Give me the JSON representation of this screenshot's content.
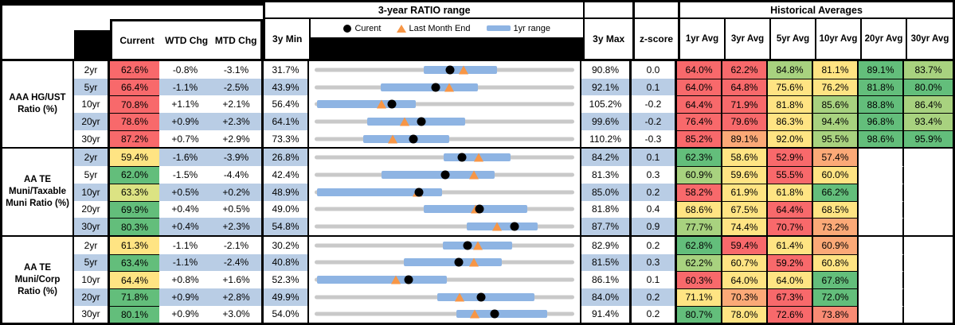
{
  "palette": {
    "band_blue": "#B9CDE5",
    "bar_blue": "#8EB4E3",
    "track_gray": "#C9C9C9",
    "marker_orange": "#F79646",
    "scale_red": "#F8696B",
    "scale_salmon": "#F98B74",
    "scale_orange": "#FBA977",
    "scale_yellow": "#FFE483",
    "scale_yellowgreen": "#DCE383",
    "scale_lightgreen": "#A8D27F",
    "scale_green": "#63BE7B"
  },
  "header": {
    "chart_title": "3-year RATIO range",
    "hist_title": "Historical Averages",
    "col_current": "Current",
    "col_wtd": "WTD Chg",
    "col_mtd": "MTD Chg",
    "col_min": "3y Min",
    "col_max": "3y Max",
    "col_z": "z-score",
    "avg_cols": [
      "1yr Avg",
      "3yr Avg",
      "5yr Avg",
      "10yr Avg",
      "20yr Avg",
      "30yr Avg"
    ],
    "legend_current": "Curent",
    "legend_last_month": "Last Month End",
    "legend_range": "1yr range"
  },
  "groups": [
    {
      "label": "AAA HG/UST Ratio (%)",
      "rows": [
        {
          "tenor": "2yr",
          "current": "62.6%",
          "ccol": "red",
          "wtd": "-0.8%",
          "mtd": "-3.1%",
          "min": "31.7%",
          "max": "90.8%",
          "z": "0.0",
          "avgs": [
            {
              "v": "64.0%",
              "c": "red"
            },
            {
              "v": "62.2%",
              "c": "red"
            },
            {
              "v": "84.8%",
              "c": "lg"
            },
            {
              "v": "81.1%",
              "c": "yellow"
            },
            {
              "v": "89.1%",
              "c": "green"
            },
            {
              "v": "83.7%",
              "c": "lg"
            }
          ],
          "chart": {
            "min": 31.7,
            "max": 90.8,
            "lo": 56.4,
            "hi": 73.4,
            "cur": 62.6,
            "lme": 65.7
          }
        },
        {
          "tenor": "5yr",
          "current": "66.4%",
          "ccol": "red",
          "wtd": "-1.1%",
          "mtd": "-2.5%",
          "min": "43.9%",
          "max": "92.1%",
          "z": "0.1",
          "avgs": [
            {
              "v": "64.0%",
              "c": "red"
            },
            {
              "v": "64.8%",
              "c": "red"
            },
            {
              "v": "75.6%",
              "c": "yellow"
            },
            {
              "v": "76.2%",
              "c": "yellow"
            },
            {
              "v": "81.8%",
              "c": "green"
            },
            {
              "v": "80.0%",
              "c": "green"
            }
          ],
          "chart": {
            "min": 43.9,
            "max": 92.1,
            "lo": 56.0,
            "hi": 74.3,
            "cur": 66.4,
            "lme": 68.9
          }
        },
        {
          "tenor": "10yr",
          "current": "70.8%",
          "ccol": "red",
          "wtd": "+1.1%",
          "mtd": "+2.1%",
          "min": "56.4%",
          "max": "105.2%",
          "z": "-0.2",
          "avgs": [
            {
              "v": "64.4%",
              "c": "red"
            },
            {
              "v": "71.9%",
              "c": "red"
            },
            {
              "v": "81.8%",
              "c": "yellow"
            },
            {
              "v": "85.6%",
              "c": "lg"
            },
            {
              "v": "88.8%",
              "c": "green"
            },
            {
              "v": "86.4%",
              "c": "lg"
            }
          ],
          "chart": {
            "min": 56.4,
            "max": 105.2,
            "lo": 56.4,
            "hi": 75.3,
            "cur": 70.8,
            "lme": 68.7
          }
        },
        {
          "tenor": "20yr",
          "current": "78.6%",
          "ccol": "red",
          "wtd": "+0.9%",
          "mtd": "+2.3%",
          "min": "64.1%",
          "max": "99.6%",
          "z": "-0.2",
          "avgs": [
            {
              "v": "76.4%",
              "c": "red"
            },
            {
              "v": "79.6%",
              "c": "red"
            },
            {
              "v": "86.3%",
              "c": "yellow"
            },
            {
              "v": "94.4%",
              "c": "lg"
            },
            {
              "v": "96.8%",
              "c": "green"
            },
            {
              "v": "93.4%",
              "c": "lg"
            }
          ],
          "chart": {
            "min": 64.1,
            "max": 99.6,
            "lo": 71.1,
            "hi": 84.7,
            "cur": 78.6,
            "lme": 76.3
          }
        },
        {
          "tenor": "30yr",
          "current": "87.2%",
          "ccol": "red",
          "wtd": "+0.7%",
          "mtd": "+2.9%",
          "min": "73.3%",
          "max": "110.2%",
          "z": "-0.3",
          "avgs": [
            {
              "v": "85.2%",
              "c": "red"
            },
            {
              "v": "89.1%",
              "c": "orange"
            },
            {
              "v": "92.0%",
              "c": "yellow"
            },
            {
              "v": "95.5%",
              "c": "lg"
            },
            {
              "v": "98.6%",
              "c": "green"
            },
            {
              "v": "95.9%",
              "c": "green"
            }
          ],
          "chart": {
            "min": 73.3,
            "max": 110.2,
            "lo": 80.0,
            "hi": 92.4,
            "cur": 87.2,
            "lme": 84.3
          }
        }
      ]
    },
    {
      "label": "AA TE Muni/Taxable Muni Ratio (%)",
      "rows": [
        {
          "tenor": "2yr",
          "current": "59.4%",
          "ccol": "yellow",
          "wtd": "-1.6%",
          "mtd": "-3.9%",
          "min": "26.8%",
          "max": "84.2%",
          "z": "0.1",
          "avgs": [
            {
              "v": "62.3%",
              "c": "green"
            },
            {
              "v": "58.6%",
              "c": "yellow"
            },
            {
              "v": "52.9%",
              "c": "red"
            },
            {
              "v": "57.4%",
              "c": "orange"
            },
            null,
            null
          ],
          "chart": {
            "min": 26.8,
            "max": 84.2,
            "lo": 55.4,
            "hi": 70.4,
            "cur": 59.4,
            "lme": 63.3
          }
        },
        {
          "tenor": "5yr",
          "current": "62.0%",
          "ccol": "green",
          "wtd": "-1.5%",
          "mtd": "-4.4%",
          "min": "42.4%",
          "max": "81.3%",
          "z": "0.3",
          "avgs": [
            {
              "v": "60.9%",
              "c": "lg"
            },
            {
              "v": "59.6%",
              "c": "yellow"
            },
            {
              "v": "55.5%",
              "c": "red"
            },
            {
              "v": "60.0%",
              "c": "yellow"
            },
            null,
            null
          ],
          "chart": {
            "min": 42.4,
            "max": 81.3,
            "lo": 52.2,
            "hi": 69.5,
            "cur": 62.0,
            "lme": 66.4
          }
        },
        {
          "tenor": "10yr",
          "current": "63.3%",
          "ccol": "yg",
          "wtd": "+0.5%",
          "mtd": "+0.2%",
          "min": "48.9%",
          "max": "85.0%",
          "z": "0.2",
          "avgs": [
            {
              "v": "58.2%",
              "c": "red"
            },
            {
              "v": "61.9%",
              "c": "yellow"
            },
            {
              "v": "61.8%",
              "c": "yellow"
            },
            {
              "v": "66.2%",
              "c": "green"
            },
            null,
            null
          ],
          "chart": {
            "min": 48.9,
            "max": 85.0,
            "lo": 48.9,
            "hi": 66.6,
            "cur": 63.3,
            "lme": 63.1
          }
        },
        {
          "tenor": "20yr",
          "current": "69.9%",
          "ccol": "green",
          "wtd": "+0.4%",
          "mtd": "+0.5%",
          "min": "49.0%",
          "max": "81.8%",
          "z": "0.4",
          "avgs": [
            {
              "v": "68.6%",
              "c": "yellow"
            },
            {
              "v": "67.5%",
              "c": "yellow"
            },
            {
              "v": "64.4%",
              "c": "red"
            },
            {
              "v": "68.5%",
              "c": "yellow"
            },
            null,
            null
          ],
          "chart": {
            "min": 49.0,
            "max": 81.8,
            "lo": 62.7,
            "hi": 76.1,
            "cur": 69.9,
            "lme": 69.4
          }
        },
        {
          "tenor": "30yr",
          "current": "80.3%",
          "ccol": "green",
          "wtd": "+0.4%",
          "mtd": "+2.3%",
          "min": "54.8%",
          "max": "87.7%",
          "z": "0.9",
          "avgs": [
            {
              "v": "77.7%",
              "c": "lg"
            },
            {
              "v": "74.4%",
              "c": "yellow"
            },
            {
              "v": "70.7%",
              "c": "red"
            },
            {
              "v": "73.2%",
              "c": "orange"
            },
            null,
            null
          ],
          "chart": {
            "min": 54.8,
            "max": 87.7,
            "lo": 74.1,
            "hi": 83.3,
            "cur": 80.3,
            "lme": 78.0
          }
        }
      ]
    },
    {
      "label": "AA TE Muni/Corp Ratio (%)",
      "rows": [
        {
          "tenor": "2yr",
          "current": "61.3%",
          "ccol": "yellow",
          "wtd": "-1.1%",
          "mtd": "-2.1%",
          "min": "30.2%",
          "max": "82.9%",
          "z": "0.2",
          "avgs": [
            {
              "v": "62.8%",
              "c": "green"
            },
            {
              "v": "59.4%",
              "c": "red"
            },
            {
              "v": "61.4%",
              "c": "yellow"
            },
            {
              "v": "60.9%",
              "c": "orange"
            },
            null,
            null
          ],
          "chart": {
            "min": 30.2,
            "max": 82.9,
            "lo": 56.3,
            "hi": 70.5,
            "cur": 61.3,
            "lme": 63.4
          }
        },
        {
          "tenor": "5yr",
          "current": "63.4%",
          "ccol": "green",
          "wtd": "-1.1%",
          "mtd": "-2.4%",
          "min": "40.8%",
          "max": "81.5%",
          "z": "0.3",
          "avgs": [
            {
              "v": "62.2%",
              "c": "lg"
            },
            {
              "v": "60.7%",
              "c": "yellow"
            },
            {
              "v": "59.2%",
              "c": "red"
            },
            {
              "v": "60.8%",
              "c": "yellow"
            },
            null,
            null
          ],
          "chart": {
            "min": 40.8,
            "max": 81.5,
            "lo": 54.6,
            "hi": 70.3,
            "cur": 63.4,
            "lme": 65.8
          }
        },
        {
          "tenor": "10yr",
          "current": "64.4%",
          "ccol": "yellow",
          "wtd": "+0.8%",
          "mtd": "+1.6%",
          "min": "52.3%",
          "max": "86.1%",
          "z": "0.1",
          "avgs": [
            {
              "v": "60.3%",
              "c": "red"
            },
            {
              "v": "64.0%",
              "c": "yellow"
            },
            {
              "v": "64.0%",
              "c": "yellow"
            },
            {
              "v": "67.8%",
              "c": "green"
            },
            null,
            null
          ],
          "chart": {
            "min": 52.3,
            "max": 86.1,
            "lo": 52.3,
            "hi": 69.5,
            "cur": 64.4,
            "lme": 62.8
          }
        },
        {
          "tenor": "20yr",
          "current": "71.8%",
          "ccol": "green",
          "wtd": "+0.9%",
          "mtd": "+2.8%",
          "min": "49.9%",
          "max": "84.0%",
          "z": "0.2",
          "avgs": [
            {
              "v": "71.1%",
              "c": "yellow"
            },
            {
              "v": "70.3%",
              "c": "orange"
            },
            {
              "v": "67.3%",
              "c": "red"
            },
            {
              "v": "72.0%",
              "c": "green"
            },
            null,
            null
          ],
          "chart": {
            "min": 49.9,
            "max": 84.0,
            "lo": 66.0,
            "hi": 79.0,
            "cur": 71.8,
            "lme": 69.0
          }
        },
        {
          "tenor": "30yr",
          "current": "80.1%",
          "ccol": "green",
          "wtd": "+0.9%",
          "mtd": "+3.0%",
          "min": "54.0%",
          "max": "91.4%",
          "z": "0.2",
          "avgs": [
            {
              "v": "80.7%",
              "c": "green"
            },
            {
              "v": "78.0%",
              "c": "yellow"
            },
            {
              "v": "72.6%",
              "c": "red"
            },
            {
              "v": "73.8%",
              "c": "salmon"
            },
            null,
            null
          ],
          "chart": {
            "min": 54.0,
            "max": 91.4,
            "lo": 74.5,
            "hi": 87.8,
            "cur": 80.1,
            "lme": 77.1
          }
        }
      ]
    }
  ],
  "chart_data": {
    "type": "table",
    "title": "3-year RATIO range",
    "legend": [
      "Curent",
      "Last Month End",
      "1yr range"
    ],
    "note": "Each row plots a horizontal range from 3y Min to 3y Max (gray track), a 1yr range bar (blue), current value (black dot) and last month end (orange triangle). Values in percent.",
    "rows": [
      {
        "group": "AAA HG/UST Ratio (%)",
        "tenor": "2yr",
        "min_3y": 31.7,
        "max_3y": 90.8,
        "range_1yr": [
          56.4,
          73.4
        ],
        "current": 62.6,
        "last_month_end": 65.7
      },
      {
        "group": "AAA HG/UST Ratio (%)",
        "tenor": "5yr",
        "min_3y": 43.9,
        "max_3y": 92.1,
        "range_1yr": [
          56.0,
          74.3
        ],
        "current": 66.4,
        "last_month_end": 68.9
      },
      {
        "group": "AAA HG/UST Ratio (%)",
        "tenor": "10yr",
        "min_3y": 56.4,
        "max_3y": 105.2,
        "range_1yr": [
          56.4,
          75.3
        ],
        "current": 70.8,
        "last_month_end": 68.7
      },
      {
        "group": "AAA HG/UST Ratio (%)",
        "tenor": "20yr",
        "min_3y": 64.1,
        "max_3y": 99.6,
        "range_1yr": [
          71.1,
          84.7
        ],
        "current": 78.6,
        "last_month_end": 76.3
      },
      {
        "group": "AAA HG/UST Ratio (%)",
        "tenor": "30yr",
        "min_3y": 73.3,
        "max_3y": 110.2,
        "range_1yr": [
          80.0,
          92.4
        ],
        "current": 87.2,
        "last_month_end": 84.3
      },
      {
        "group": "AA TE Muni/Taxable Muni Ratio (%)",
        "tenor": "2yr",
        "min_3y": 26.8,
        "max_3y": 84.2,
        "range_1yr": [
          55.4,
          70.4
        ],
        "current": 59.4,
        "last_month_end": 63.3
      },
      {
        "group": "AA TE Muni/Taxable Muni Ratio (%)",
        "tenor": "5yr",
        "min_3y": 42.4,
        "max_3y": 81.3,
        "range_1yr": [
          52.2,
          69.5
        ],
        "current": 62.0,
        "last_month_end": 66.4
      },
      {
        "group": "AA TE Muni/Taxable Muni Ratio (%)",
        "tenor": "10yr",
        "min_3y": 48.9,
        "max_3y": 85.0,
        "range_1yr": [
          48.9,
          66.6
        ],
        "current": 63.3,
        "last_month_end": 63.1
      },
      {
        "group": "AA TE Muni/Taxable Muni Ratio (%)",
        "tenor": "20yr",
        "min_3y": 49.0,
        "max_3y": 81.8,
        "range_1yr": [
          62.7,
          76.1
        ],
        "current": 69.9,
        "last_month_end": 69.4
      },
      {
        "group": "AA TE Muni/Taxable Muni Ratio (%)",
        "tenor": "30yr",
        "min_3y": 54.8,
        "max_3y": 87.7,
        "range_1yr": [
          74.1,
          83.3
        ],
        "current": 80.3,
        "last_month_end": 78.0
      },
      {
        "group": "AA TE Muni/Corp Ratio (%)",
        "tenor": "2yr",
        "min_3y": 30.2,
        "max_3y": 82.9,
        "range_1yr": [
          56.3,
          70.5
        ],
        "current": 61.3,
        "last_month_end": 63.4
      },
      {
        "group": "AA TE Muni/Corp Ratio (%)",
        "tenor": "5yr",
        "min_3y": 40.8,
        "max_3y": 81.5,
        "range_1yr": [
          54.6,
          70.3
        ],
        "current": 63.4,
        "last_month_end": 65.8
      },
      {
        "group": "AA TE Muni/Corp Ratio (%)",
        "tenor": "10yr",
        "min_3y": 52.3,
        "max_3y": 86.1,
        "range_1yr": [
          52.3,
          69.5
        ],
        "current": 64.4,
        "last_month_end": 62.8
      },
      {
        "group": "AA TE Muni/Corp Ratio (%)",
        "tenor": "20yr",
        "min_3y": 49.9,
        "max_3y": 84.0,
        "range_1yr": [
          66.0,
          79.0
        ],
        "current": 71.8,
        "last_month_end": 69.0
      },
      {
        "group": "AA TE Muni/Corp Ratio (%)",
        "tenor": "30yr",
        "min_3y": 54.0,
        "max_3y": 91.4,
        "range_1yr": [
          74.5,
          87.8
        ],
        "current": 80.1,
        "last_month_end": 77.1
      }
    ]
  }
}
